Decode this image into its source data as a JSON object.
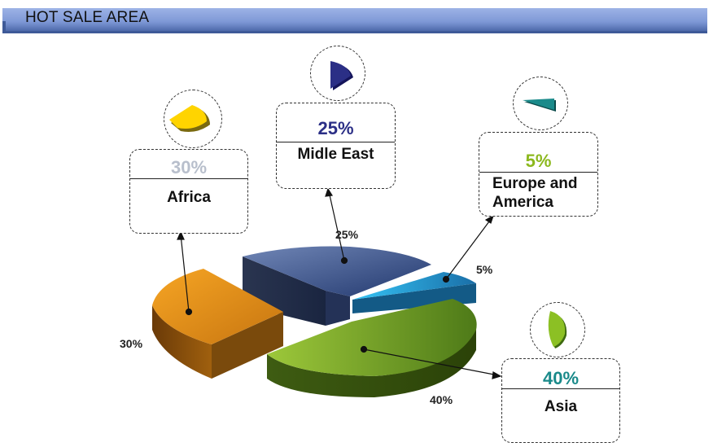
{
  "header": {
    "title": "HOT SALE AREA"
  },
  "chart_data": {
    "type": "pie",
    "title": "HOT SALE AREA",
    "categories": [
      "Midle East",
      "Europe and America",
      "Asia",
      "Africa"
    ],
    "values": [
      25,
      5,
      40,
      30
    ],
    "labels": [
      "25%",
      "5%",
      "40%",
      "30%"
    ],
    "colors": [
      "#2e4a86",
      "#1e8fc8",
      "#6a9a2a",
      "#d98a1a"
    ],
    "label_colors": [
      "#2b2f86",
      "#8cb81e",
      "#1a8a8a",
      "#b8bfcc"
    ]
  },
  "callouts": {
    "midle_east": {
      "pct": "25%",
      "name": "Midle East",
      "icon": "navy-wedge-icon"
    },
    "europe": {
      "pct": "5%",
      "name_line1": "Europe and",
      "name_line2": "America",
      "icon": "teal-sliver-icon"
    },
    "asia": {
      "pct": "40%",
      "name": "Asia",
      "icon": "green-leaf-icon"
    },
    "africa": {
      "pct": "30%",
      "name": "Africa",
      "icon": "yellow-wedge-icon"
    }
  }
}
